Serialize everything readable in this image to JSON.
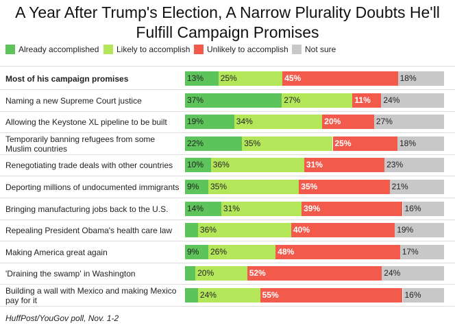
{
  "chart_data": {
    "type": "bar",
    "orientation": "horizontal",
    "stacked": true,
    "title": "A Year After Trump's Election, A Narrow Plurality Doubts He'll Fulfill Campaign Promises",
    "source": "HuffPost/YouGov poll, Nov. 1-2",
    "legend_placement": "top",
    "series": [
      {
        "name": "Already accomplished",
        "color": "#5cc45a"
      },
      {
        "name": "Likely to accomplish",
        "color": "#b4e65a"
      },
      {
        "name": "Unlikely to accomplish",
        "color": "#f25a4b"
      },
      {
        "name": "Not sure",
        "color": "#c8c8c8"
      }
    ],
    "rows": [
      {
        "label": "Most of his campaign promises",
        "bold": true,
        "values": [
          13,
          25,
          45,
          18
        ],
        "texts": [
          "13%",
          "25%",
          "45%",
          "18%"
        ]
      },
      {
        "label": "Naming a new Supreme Court justice",
        "values": [
          37,
          27,
          11,
          24
        ],
        "texts": [
          "37%",
          "27%",
          "11%",
          "24%"
        ]
      },
      {
        "label": "Allowing the Keystone XL pipeline to be built",
        "values": [
          19,
          34,
          20,
          27
        ],
        "texts": [
          "19%",
          "34%",
          "20%",
          "27%"
        ]
      },
      {
        "label": "Temporarily banning refugees from some Muslim countries",
        "values": [
          22,
          35,
          25,
          18
        ],
        "texts": [
          "22%",
          "35%",
          "25%",
          "18%"
        ]
      },
      {
        "label": "Renegotiating trade deals with other countries",
        "values": [
          10,
          36,
          31,
          23
        ],
        "texts": [
          "10%",
          "36%",
          "31%",
          "23%"
        ]
      },
      {
        "label": "Deporting millions of undocumented immigrants",
        "values": [
          9,
          35,
          35,
          21
        ],
        "texts": [
          "9%",
          "35%",
          "35%",
          "21%"
        ]
      },
      {
        "label": "Bringing manufacturing jobs back to the U.S.",
        "values": [
          14,
          31,
          39,
          16
        ],
        "texts": [
          "14%",
          "31%",
          "39%",
          "16%"
        ]
      },
      {
        "label": "Repealing President Obama's health care law",
        "values": [
          5,
          36,
          40,
          19
        ],
        "texts": [
          "",
          "36%",
          "40%",
          "19%"
        ]
      },
      {
        "label": "Making America great again",
        "values": [
          9,
          26,
          48,
          17
        ],
        "texts": [
          "9%",
          "26%",
          "48%",
          "17%"
        ]
      },
      {
        "label": "'Draining the swamp' in Washington",
        "values": [
          4,
          20,
          52,
          24
        ],
        "texts": [
          "",
          "20%",
          "52%",
          "24%"
        ]
      },
      {
        "label": "Building a wall with Mexico and making Mexico pay for it",
        "values": [
          5,
          24,
          55,
          16
        ],
        "texts": [
          "",
          "24%",
          "55%",
          "16%"
        ]
      }
    ]
  }
}
